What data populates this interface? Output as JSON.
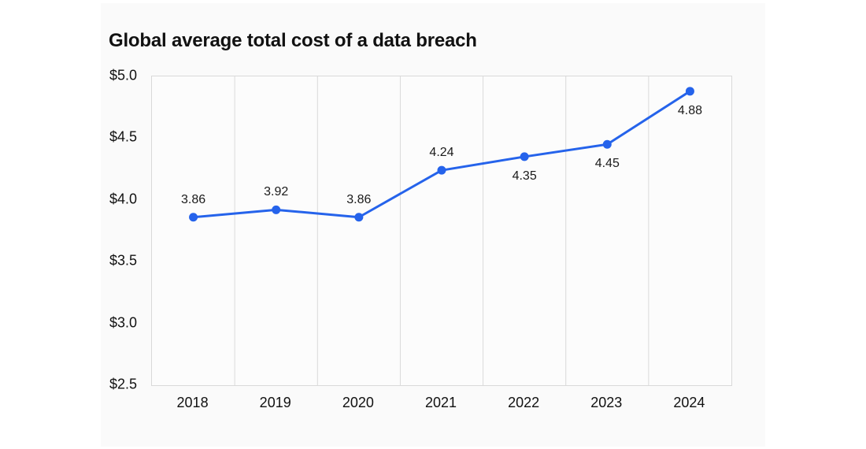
{
  "chart_data": {
    "type": "line",
    "title": "Global average total cost of a data breach",
    "categories": [
      "2018",
      "2019",
      "2020",
      "2021",
      "2022",
      "2023",
      "2024"
    ],
    "values": [
      3.86,
      3.92,
      3.86,
      4.24,
      4.35,
      4.45,
      4.88
    ],
    "point_labels": [
      "3.86",
      "3.92",
      "3.86",
      "4.24",
      "4.35",
      "4.45",
      "4.88"
    ],
    "point_label_positions": [
      "above",
      "above",
      "above",
      "above",
      "below",
      "below",
      "below"
    ],
    "ylim": [
      2.5,
      5.0
    ],
    "yticks": [
      {
        "value": 5.0,
        "label": "$5.0"
      },
      {
        "value": 4.5,
        "label": "$4.5"
      },
      {
        "value": 4.0,
        "label": "$4.0"
      },
      {
        "value": 3.5,
        "label": "$3.5"
      },
      {
        "value": 3.0,
        "label": "$3.0"
      },
      {
        "value": 2.5,
        "label": "$2.5"
      }
    ],
    "xlabel": "",
    "ylabel": "",
    "grid": "vertical",
    "legend_position": "none",
    "colors": {
      "line": "#2563eb",
      "point": "#2563eb",
      "gridline": "#d9d9d9",
      "plot_border": "#d9d9d9",
      "plot_background": "#fcfcfc",
      "card_background": "#fafafa",
      "page_background": "#ffffff",
      "title_text": "#111111",
      "axis_text": "#111111",
      "point_label_text": "#1a1a1a"
    }
  }
}
